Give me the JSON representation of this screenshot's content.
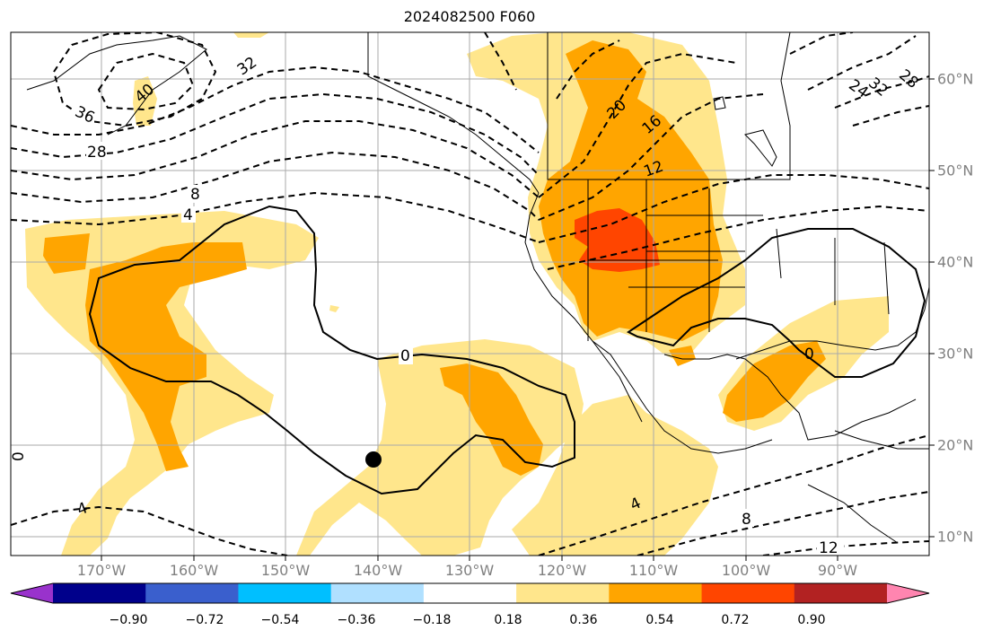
{
  "title": "2024082500 F060",
  "map": {
    "lon_labels": [
      "170°W",
      "160°W",
      "150°W",
      "140°W",
      "130°W",
      "120°W",
      "110°W",
      "100°W",
      "90°W"
    ],
    "lat_labels": [
      "60°N",
      "50°N",
      "40°N",
      "30°N",
      "20°N",
      "10°N"
    ],
    "contour_labels": [
      "36",
      "32",
      "28",
      "40",
      "8",
      "4",
      "28",
      "32",
      "24",
      "20",
      "16",
      "12",
      "0",
      "0",
      "0",
      "4",
      "8",
      "12",
      "4"
    ],
    "shading_colors": [
      "#ffe68c",
      "#ffa500",
      "#ff4500"
    ],
    "contour_style": "dashed black (positive), solid black (zero)",
    "marker": "black dot"
  },
  "colorbar": {
    "colors": [
      "#9932cc",
      "#00008b",
      "#3a5fcd",
      "#00bfff",
      "#b0e0ff",
      "#ffffff",
      "#ffe68c",
      "#ffa500",
      "#ff4500",
      "#b22222",
      "#ff85b0"
    ],
    "tick_labels": [
      "−0.90",
      "−0.72",
      "−0.54",
      "−0.36",
      "−0.18",
      "0.18",
      "0.36",
      "0.54",
      "0.72",
      "0.90"
    ],
    "extend": "both"
  }
}
